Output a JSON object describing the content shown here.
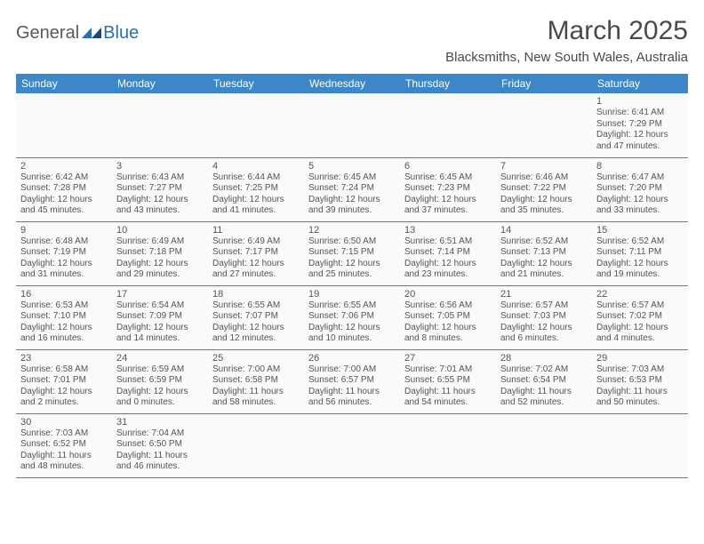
{
  "logo": {
    "text_general": "General",
    "text_blue": "Blue"
  },
  "title": "March 2025",
  "location": "Blacksmiths, New South Wales, Australia",
  "colors": {
    "header_bg": "#3b87c8",
    "header_text": "#ffffff",
    "cell_border": "#3b87c8",
    "cell_bg": "#fafafa",
    "text": "#555555",
    "logo_gray": "#5a5a5a",
    "logo_blue": "#2a6fb5"
  },
  "day_headers": [
    "Sunday",
    "Monday",
    "Tuesday",
    "Wednesday",
    "Thursday",
    "Friday",
    "Saturday"
  ],
  "weeks": [
    [
      null,
      null,
      null,
      null,
      null,
      null,
      {
        "n": "1",
        "sunrise": "Sunrise: 6:41 AM",
        "sunset": "Sunset: 7:29 PM",
        "d1": "Daylight: 12 hours",
        "d2": "and 47 minutes."
      }
    ],
    [
      {
        "n": "2",
        "sunrise": "Sunrise: 6:42 AM",
        "sunset": "Sunset: 7:28 PM",
        "d1": "Daylight: 12 hours",
        "d2": "and 45 minutes."
      },
      {
        "n": "3",
        "sunrise": "Sunrise: 6:43 AM",
        "sunset": "Sunset: 7:27 PM",
        "d1": "Daylight: 12 hours",
        "d2": "and 43 minutes."
      },
      {
        "n": "4",
        "sunrise": "Sunrise: 6:44 AM",
        "sunset": "Sunset: 7:25 PM",
        "d1": "Daylight: 12 hours",
        "d2": "and 41 minutes."
      },
      {
        "n": "5",
        "sunrise": "Sunrise: 6:45 AM",
        "sunset": "Sunset: 7:24 PM",
        "d1": "Daylight: 12 hours",
        "d2": "and 39 minutes."
      },
      {
        "n": "6",
        "sunrise": "Sunrise: 6:45 AM",
        "sunset": "Sunset: 7:23 PM",
        "d1": "Daylight: 12 hours",
        "d2": "and 37 minutes."
      },
      {
        "n": "7",
        "sunrise": "Sunrise: 6:46 AM",
        "sunset": "Sunset: 7:22 PM",
        "d1": "Daylight: 12 hours",
        "d2": "and 35 minutes."
      },
      {
        "n": "8",
        "sunrise": "Sunrise: 6:47 AM",
        "sunset": "Sunset: 7:20 PM",
        "d1": "Daylight: 12 hours",
        "d2": "and 33 minutes."
      }
    ],
    [
      {
        "n": "9",
        "sunrise": "Sunrise: 6:48 AM",
        "sunset": "Sunset: 7:19 PM",
        "d1": "Daylight: 12 hours",
        "d2": "and 31 minutes."
      },
      {
        "n": "10",
        "sunrise": "Sunrise: 6:49 AM",
        "sunset": "Sunset: 7:18 PM",
        "d1": "Daylight: 12 hours",
        "d2": "and 29 minutes."
      },
      {
        "n": "11",
        "sunrise": "Sunrise: 6:49 AM",
        "sunset": "Sunset: 7:17 PM",
        "d1": "Daylight: 12 hours",
        "d2": "and 27 minutes."
      },
      {
        "n": "12",
        "sunrise": "Sunrise: 6:50 AM",
        "sunset": "Sunset: 7:15 PM",
        "d1": "Daylight: 12 hours",
        "d2": "and 25 minutes."
      },
      {
        "n": "13",
        "sunrise": "Sunrise: 6:51 AM",
        "sunset": "Sunset: 7:14 PM",
        "d1": "Daylight: 12 hours",
        "d2": "and 23 minutes."
      },
      {
        "n": "14",
        "sunrise": "Sunrise: 6:52 AM",
        "sunset": "Sunset: 7:13 PM",
        "d1": "Daylight: 12 hours",
        "d2": "and 21 minutes."
      },
      {
        "n": "15",
        "sunrise": "Sunrise: 6:52 AM",
        "sunset": "Sunset: 7:11 PM",
        "d1": "Daylight: 12 hours",
        "d2": "and 19 minutes."
      }
    ],
    [
      {
        "n": "16",
        "sunrise": "Sunrise: 6:53 AM",
        "sunset": "Sunset: 7:10 PM",
        "d1": "Daylight: 12 hours",
        "d2": "and 16 minutes."
      },
      {
        "n": "17",
        "sunrise": "Sunrise: 6:54 AM",
        "sunset": "Sunset: 7:09 PM",
        "d1": "Daylight: 12 hours",
        "d2": "and 14 minutes."
      },
      {
        "n": "18",
        "sunrise": "Sunrise: 6:55 AM",
        "sunset": "Sunset: 7:07 PM",
        "d1": "Daylight: 12 hours",
        "d2": "and 12 minutes."
      },
      {
        "n": "19",
        "sunrise": "Sunrise: 6:55 AM",
        "sunset": "Sunset: 7:06 PM",
        "d1": "Daylight: 12 hours",
        "d2": "and 10 minutes."
      },
      {
        "n": "20",
        "sunrise": "Sunrise: 6:56 AM",
        "sunset": "Sunset: 7:05 PM",
        "d1": "Daylight: 12 hours",
        "d2": "and 8 minutes."
      },
      {
        "n": "21",
        "sunrise": "Sunrise: 6:57 AM",
        "sunset": "Sunset: 7:03 PM",
        "d1": "Daylight: 12 hours",
        "d2": "and 6 minutes."
      },
      {
        "n": "22",
        "sunrise": "Sunrise: 6:57 AM",
        "sunset": "Sunset: 7:02 PM",
        "d1": "Daylight: 12 hours",
        "d2": "and 4 minutes."
      }
    ],
    [
      {
        "n": "23",
        "sunrise": "Sunrise: 6:58 AM",
        "sunset": "Sunset: 7:01 PM",
        "d1": "Daylight: 12 hours",
        "d2": "and 2 minutes."
      },
      {
        "n": "24",
        "sunrise": "Sunrise: 6:59 AM",
        "sunset": "Sunset: 6:59 PM",
        "d1": "Daylight: 12 hours",
        "d2": "and 0 minutes."
      },
      {
        "n": "25",
        "sunrise": "Sunrise: 7:00 AM",
        "sunset": "Sunset: 6:58 PM",
        "d1": "Daylight: 11 hours",
        "d2": "and 58 minutes."
      },
      {
        "n": "26",
        "sunrise": "Sunrise: 7:00 AM",
        "sunset": "Sunset: 6:57 PM",
        "d1": "Daylight: 11 hours",
        "d2": "and 56 minutes."
      },
      {
        "n": "27",
        "sunrise": "Sunrise: 7:01 AM",
        "sunset": "Sunset: 6:55 PM",
        "d1": "Daylight: 11 hours",
        "d2": "and 54 minutes."
      },
      {
        "n": "28",
        "sunrise": "Sunrise: 7:02 AM",
        "sunset": "Sunset: 6:54 PM",
        "d1": "Daylight: 11 hours",
        "d2": "and 52 minutes."
      },
      {
        "n": "29",
        "sunrise": "Sunrise: 7:03 AM",
        "sunset": "Sunset: 6:53 PM",
        "d1": "Daylight: 11 hours",
        "d2": "and 50 minutes."
      }
    ],
    [
      {
        "n": "30",
        "sunrise": "Sunrise: 7:03 AM",
        "sunset": "Sunset: 6:52 PM",
        "d1": "Daylight: 11 hours",
        "d2": "and 48 minutes."
      },
      {
        "n": "31",
        "sunrise": "Sunrise: 7:04 AM",
        "sunset": "Sunset: 6:50 PM",
        "d1": "Daylight: 11 hours",
        "d2": "and 46 minutes."
      },
      null,
      null,
      null,
      null,
      null
    ]
  ]
}
